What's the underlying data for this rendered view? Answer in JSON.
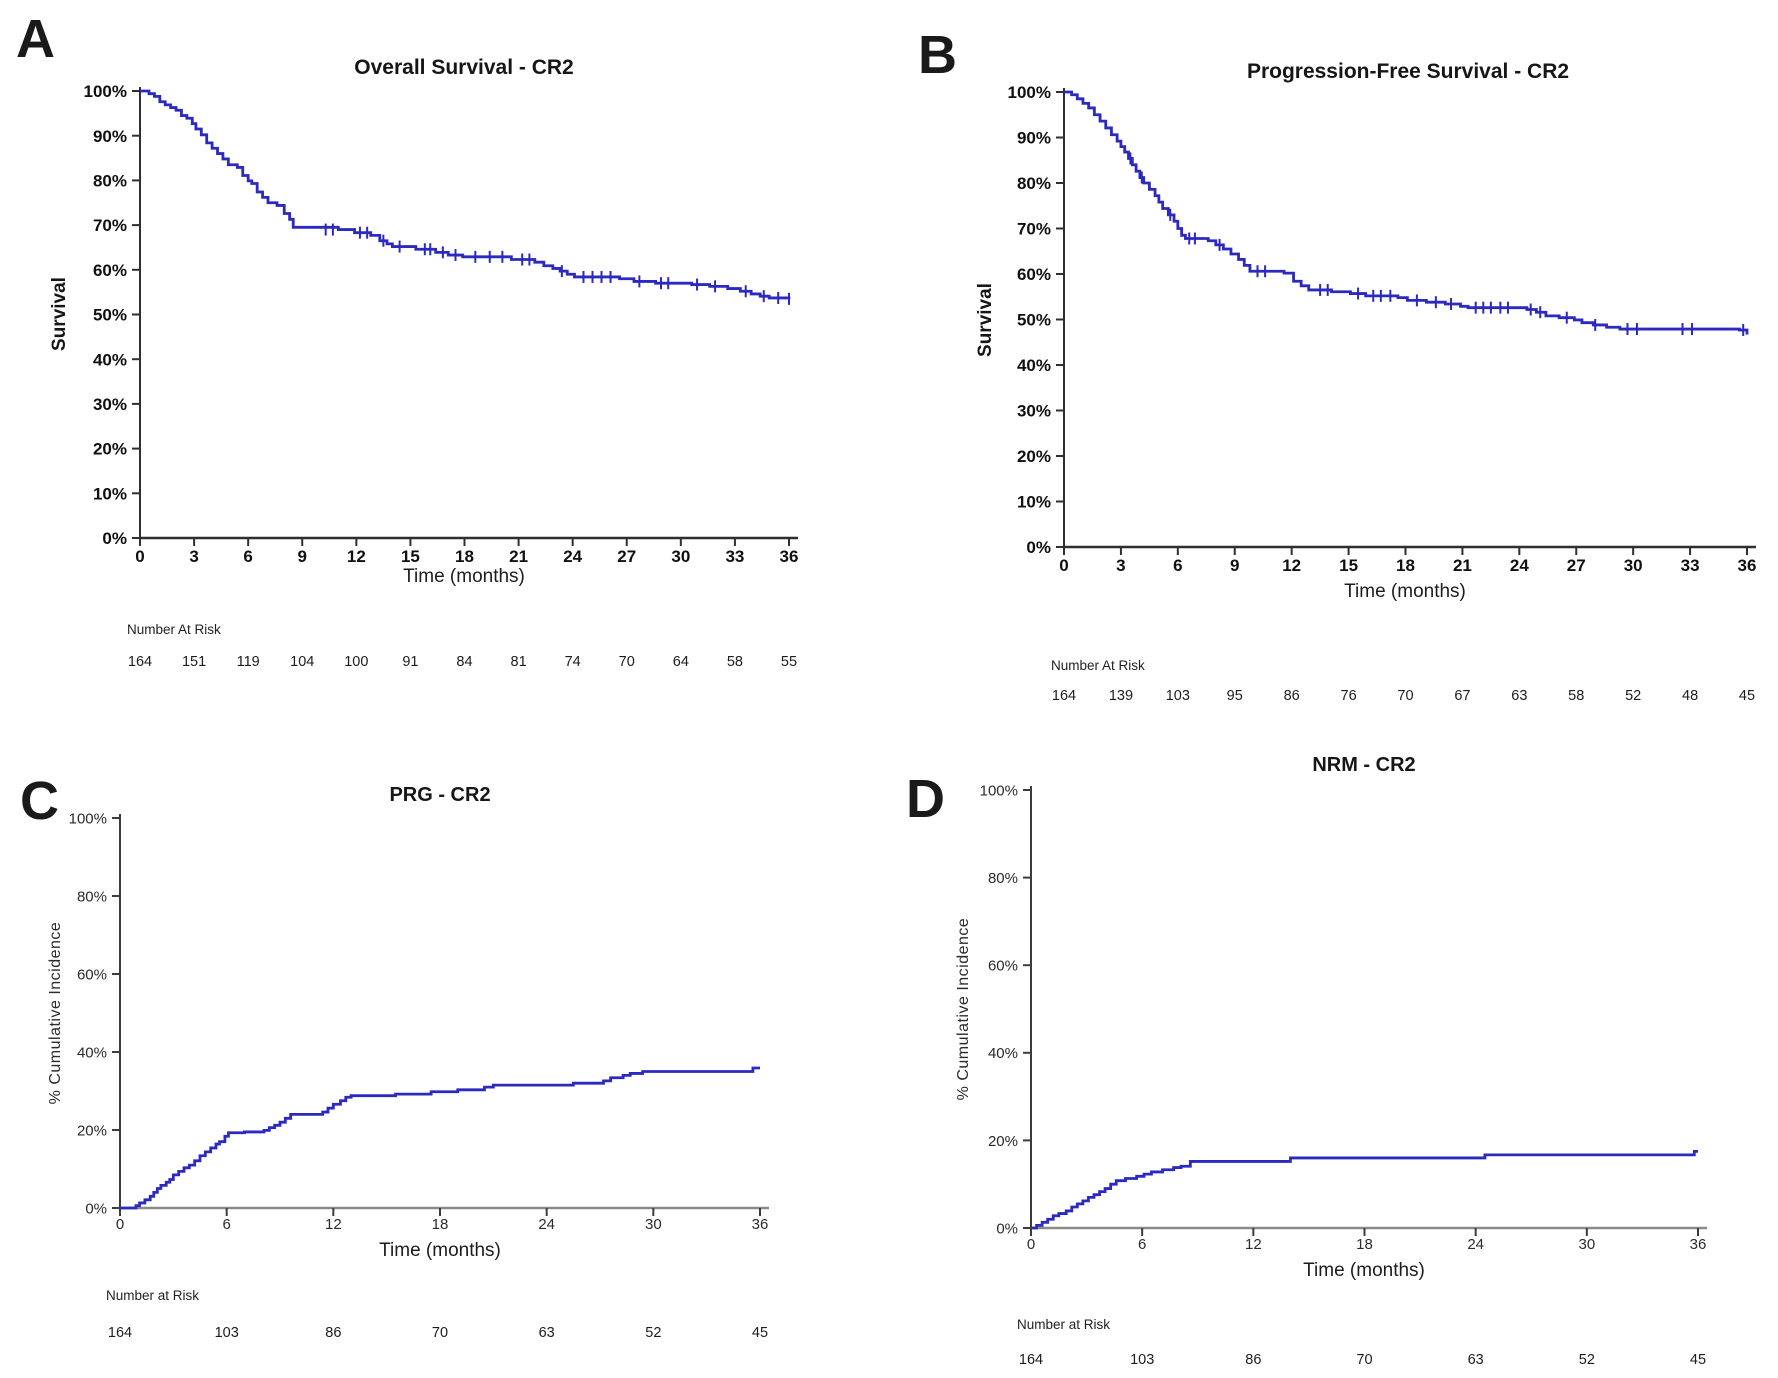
{
  "figure": {
    "background": "#ffffff",
    "curve_color": "#2b29bf",
    "panel_count": 4
  },
  "chart_data": [
    {
      "id": "A",
      "panel_label": "A",
      "type": "line",
      "title": "Overall Survival - CR2",
      "xlabel": "Time (months)",
      "ylabel": "Survival",
      "xlim": [
        0,
        36
      ],
      "ylim": [
        0,
        100
      ],
      "grid": false,
      "legend": "none",
      "x_ticks": [
        0,
        3,
        6,
        9,
        12,
        15,
        18,
        21,
        24,
        27,
        30,
        33,
        36
      ],
      "y_ticks": [
        0,
        10,
        20,
        30,
        40,
        50,
        60,
        70,
        80,
        90,
        100
      ],
      "y_tick_suffix": "%",
      "curve_color": "#2b29bf",
      "steps": [
        [
          0,
          100
        ],
        [
          0.5,
          99.4
        ],
        [
          0.8,
          98.8
        ],
        [
          1.1,
          97.6
        ],
        [
          1.4,
          96.9
        ],
        [
          1.7,
          96.3
        ],
        [
          2.0,
          95.7
        ],
        [
          2.3,
          94.5
        ],
        [
          2.6,
          93.9
        ],
        [
          2.9,
          92.7
        ],
        [
          3.1,
          91.5
        ],
        [
          3.4,
          90.2
        ],
        [
          3.7,
          88.4
        ],
        [
          4.0,
          87.2
        ],
        [
          4.3,
          86.0
        ],
        [
          4.6,
          84.8
        ],
        [
          4.9,
          83.5
        ],
        [
          5.4,
          82.9
        ],
        [
          5.7,
          81.1
        ],
        [
          6.0,
          79.9
        ],
        [
          6.2,
          79.3
        ],
        [
          6.5,
          77.4
        ],
        [
          6.8,
          76.2
        ],
        [
          7.1,
          75.0
        ],
        [
          7.6,
          74.4
        ],
        [
          8.0,
          72.6
        ],
        [
          8.3,
          71.3
        ],
        [
          8.5,
          69.5
        ],
        [
          11.0,
          69.0
        ],
        [
          11.9,
          68.3
        ],
        [
          12.8,
          67.7
        ],
        [
          13.3,
          66.5
        ],
        [
          13.7,
          65.8
        ],
        [
          14.0,
          65.2
        ],
        [
          15.3,
          64.6
        ],
        [
          16.4,
          63.9
        ],
        [
          17.1,
          63.3
        ],
        [
          17.9,
          62.9
        ],
        [
          20.6,
          62.3
        ],
        [
          21.9,
          61.7
        ],
        [
          22.4,
          60.9
        ],
        [
          22.9,
          60.3
        ],
        [
          23.3,
          59.7
        ],
        [
          23.7,
          59.0
        ],
        [
          24.1,
          58.4
        ],
        [
          26.6,
          58.0
        ],
        [
          27.4,
          57.4
        ],
        [
          28.6,
          57.0
        ],
        [
          30.6,
          56.7
        ],
        [
          31.6,
          56.3
        ],
        [
          32.6,
          55.8
        ],
        [
          33.3,
          55.2
        ],
        [
          33.9,
          54.6
        ],
        [
          34.4,
          54.1
        ],
        [
          34.9,
          53.7
        ],
        [
          36,
          53.5
        ]
      ],
      "censor_marks": [
        [
          10.3,
          69.0
        ],
        [
          10.7,
          69.0
        ],
        [
          12.2,
          68.3
        ],
        [
          12.6,
          68.3
        ],
        [
          13.5,
          66.5
        ],
        [
          14.4,
          65.2
        ],
        [
          15.8,
          64.6
        ],
        [
          16.1,
          64.6
        ],
        [
          16.8,
          63.9
        ],
        [
          17.5,
          63.3
        ],
        [
          18.6,
          62.9
        ],
        [
          19.4,
          62.9
        ],
        [
          20.1,
          62.9
        ],
        [
          21.2,
          62.3
        ],
        [
          21.6,
          62.3
        ],
        [
          23.4,
          59.7
        ],
        [
          24.6,
          58.4
        ],
        [
          25.1,
          58.4
        ],
        [
          25.6,
          58.4
        ],
        [
          26.1,
          58.4
        ],
        [
          27.7,
          57.4
        ],
        [
          28.9,
          57.0
        ],
        [
          29.3,
          57.0
        ],
        [
          30.9,
          56.7
        ],
        [
          31.9,
          56.3
        ],
        [
          33.6,
          55.2
        ],
        [
          34.6,
          54.1
        ],
        [
          35.4,
          53.7
        ],
        [
          36,
          53.5
        ]
      ],
      "number_at_risk": {
        "label": "Number At Risk",
        "times": [
          0,
          3,
          6,
          9,
          12,
          15,
          18,
          21,
          24,
          27,
          30,
          33,
          36
        ],
        "counts": [
          164,
          151,
          119,
          104,
          100,
          91,
          84,
          81,
          74,
          70,
          64,
          58,
          55
        ]
      }
    },
    {
      "id": "B",
      "panel_label": "B",
      "type": "line",
      "title": "Progression-Free Survival - CR2",
      "xlabel": "Time (months)",
      "ylabel": "Survival",
      "xlim": [
        0,
        36
      ],
      "ylim": [
        0,
        100
      ],
      "grid": false,
      "legend": "none",
      "x_ticks": [
        0,
        3,
        6,
        9,
        12,
        15,
        18,
        21,
        24,
        27,
        30,
        33,
        36
      ],
      "y_ticks": [
        0,
        10,
        20,
        30,
        40,
        50,
        60,
        70,
        80,
        90,
        100
      ],
      "y_tick_suffix": "%",
      "curve_color": "#2b29bf",
      "steps": [
        [
          0,
          100
        ],
        [
          0.4,
          99.4
        ],
        [
          0.7,
          98.5
        ],
        [
          1.0,
          97.5
        ],
        [
          1.3,
          96.5
        ],
        [
          1.6,
          95.0
        ],
        [
          1.9,
          93.6
        ],
        [
          2.2,
          92.1
        ],
        [
          2.5,
          90.6
        ],
        [
          2.8,
          89.2
        ],
        [
          3.0,
          88.0
        ],
        [
          3.2,
          86.8
        ],
        [
          3.4,
          85.4
        ],
        [
          3.6,
          84.0
        ],
        [
          3.8,
          82.6
        ],
        [
          4.0,
          81.2
        ],
        [
          4.2,
          80.0
        ],
        [
          4.5,
          78.6
        ],
        [
          4.8,
          77.2
        ],
        [
          5.0,
          75.8
        ],
        [
          5.2,
          74.4
        ],
        [
          5.5,
          73.0
        ],
        [
          5.8,
          71.6
        ],
        [
          6.0,
          70.0
        ],
        [
          6.2,
          68.5
        ],
        [
          6.4,
          67.8
        ],
        [
          7.6,
          67.3
        ],
        [
          8.0,
          66.4
        ],
        [
          8.4,
          65.5
        ],
        [
          8.8,
          64.4
        ],
        [
          9.2,
          63.2
        ],
        [
          9.5,
          61.9
        ],
        [
          9.8,
          60.6
        ],
        [
          11.6,
          60.2
        ],
        [
          12.1,
          58.4
        ],
        [
          12.5,
          57.4
        ],
        [
          12.9,
          56.5
        ],
        [
          14.1,
          56.1
        ],
        [
          15.1,
          55.7
        ],
        [
          15.9,
          55.2
        ],
        [
          17.6,
          54.8
        ],
        [
          18.1,
          54.2
        ],
        [
          19.1,
          53.8
        ],
        [
          20.1,
          53.4
        ],
        [
          20.9,
          52.9
        ],
        [
          21.3,
          52.6
        ],
        [
          24.4,
          52.2
        ],
        [
          24.9,
          51.6
        ],
        [
          25.4,
          50.8
        ],
        [
          26.1,
          50.4
        ],
        [
          26.9,
          49.9
        ],
        [
          27.3,
          49.3
        ],
        [
          27.9,
          48.8
        ],
        [
          28.6,
          48.3
        ],
        [
          29.3,
          47.9
        ],
        [
          35.6,
          47.7
        ],
        [
          36,
          46.7
        ]
      ],
      "censor_marks": [
        [
          3.5,
          85.4
        ],
        [
          4.1,
          81.2
        ],
        [
          5.6,
          73.0
        ],
        [
          6.6,
          67.8
        ],
        [
          6.9,
          67.8
        ],
        [
          8.2,
          66.4
        ],
        [
          10.2,
          60.6
        ],
        [
          10.6,
          60.6
        ],
        [
          13.5,
          56.5
        ],
        [
          13.9,
          56.5
        ],
        [
          15.5,
          55.7
        ],
        [
          16.3,
          55.2
        ],
        [
          16.7,
          55.2
        ],
        [
          17.2,
          55.2
        ],
        [
          18.6,
          54.2
        ],
        [
          19.6,
          53.8
        ],
        [
          20.4,
          53.4
        ],
        [
          21.7,
          52.6
        ],
        [
          22.1,
          52.6
        ],
        [
          22.5,
          52.6
        ],
        [
          23.0,
          52.6
        ],
        [
          23.4,
          52.6
        ],
        [
          24.6,
          52.2
        ],
        [
          25.1,
          51.6
        ],
        [
          26.5,
          50.4
        ],
        [
          28.0,
          48.8
        ],
        [
          29.7,
          47.9
        ],
        [
          30.2,
          47.9
        ],
        [
          32.6,
          47.9
        ],
        [
          33.1,
          47.9
        ],
        [
          35.8,
          47.7
        ]
      ],
      "number_at_risk": {
        "label": "Number At Risk",
        "times": [
          0,
          3,
          6,
          9,
          12,
          15,
          18,
          21,
          24,
          27,
          30,
          33,
          36
        ],
        "counts": [
          164,
          139,
          103,
          95,
          86,
          76,
          70,
          67,
          63,
          58,
          52,
          48,
          45
        ]
      }
    },
    {
      "id": "C",
      "panel_label": "C",
      "type": "line",
      "title": "PRG - CR2",
      "xlabel": "Time (months)",
      "ylabel": "% Cumulative Incidence",
      "xlim": [
        0,
        36
      ],
      "ylim": [
        0,
        100
      ],
      "grid": false,
      "legend": "none",
      "x_ticks": [
        0,
        6,
        12,
        18,
        24,
        30,
        36
      ],
      "y_ticks": [
        0,
        20,
        40,
        60,
        80,
        100
      ],
      "y_tick_suffix": "%",
      "curve_color": "#2b29bf",
      "steps": [
        [
          0,
          0
        ],
        [
          0.9,
          0.6
        ],
        [
          1.1,
          1.3
        ],
        [
          1.4,
          2.1
        ],
        [
          1.7,
          3.0
        ],
        [
          1.9,
          4.0
        ],
        [
          2.1,
          5.0
        ],
        [
          2.3,
          5.8
        ],
        [
          2.6,
          6.6
        ],
        [
          2.8,
          7.3
        ],
        [
          3.0,
          8.5
        ],
        [
          3.3,
          9.4
        ],
        [
          3.6,
          10.3
        ],
        [
          3.9,
          11.0
        ],
        [
          4.2,
          12.1
        ],
        [
          4.5,
          13.4
        ],
        [
          4.8,
          14.4
        ],
        [
          5.1,
          15.4
        ],
        [
          5.4,
          16.4
        ],
        [
          5.6,
          17.0
        ],
        [
          5.9,
          18.4
        ],
        [
          6.1,
          19.3
        ],
        [
          7.0,
          19.5
        ],
        [
          8.1,
          19.9
        ],
        [
          8.4,
          20.6
        ],
        [
          8.7,
          21.2
        ],
        [
          9.0,
          22.0
        ],
        [
          9.3,
          23.0
        ],
        [
          9.6,
          24.0
        ],
        [
          11.4,
          24.6
        ],
        [
          11.7,
          25.6
        ],
        [
          12.0,
          26.6
        ],
        [
          12.4,
          27.5
        ],
        [
          12.7,
          28.4
        ],
        [
          13.0,
          28.8
        ],
        [
          15.5,
          29.2
        ],
        [
          17.5,
          29.8
        ],
        [
          19.0,
          30.3
        ],
        [
          20.5,
          31.0
        ],
        [
          21.0,
          31.5
        ],
        [
          25.5,
          32.0
        ],
        [
          27.2,
          32.6
        ],
        [
          27.6,
          33.4
        ],
        [
          28.3,
          34.0
        ],
        [
          28.7,
          34.5
        ],
        [
          29.4,
          35.0
        ],
        [
          35.6,
          35.9
        ],
        [
          36,
          35.9
        ]
      ],
      "censor_marks": [],
      "number_at_risk": {
        "label": "Number at Risk",
        "times": [
          0,
          6,
          12,
          18,
          24,
          30,
          36
        ],
        "counts": [
          164,
          103,
          86,
          70,
          63,
          52,
          45
        ]
      }
    },
    {
      "id": "D",
      "panel_label": "D",
      "type": "line",
      "title": "NRM - CR2",
      "xlabel": "Time (months)",
      "ylabel": "% Cumulative Incidence",
      "xlim": [
        0,
        36
      ],
      "ylim": [
        0,
        100
      ],
      "grid": false,
      "legend": "none",
      "x_ticks": [
        0,
        6,
        12,
        18,
        24,
        30,
        36
      ],
      "y_ticks": [
        0,
        20,
        40,
        60,
        80,
        100
      ],
      "y_tick_suffix": "%",
      "curve_color": "#2b29bf",
      "steps": [
        [
          0,
          0
        ],
        [
          0.3,
          0.6
        ],
        [
          0.6,
          1.3
        ],
        [
          0.9,
          2.0
        ],
        [
          1.2,
          2.8
        ],
        [
          1.5,
          3.3
        ],
        [
          1.9,
          3.9
        ],
        [
          2.2,
          4.8
        ],
        [
          2.5,
          5.5
        ],
        [
          2.8,
          6.2
        ],
        [
          3.1,
          7.0
        ],
        [
          3.4,
          7.6
        ],
        [
          3.7,
          8.3
        ],
        [
          4.0,
          9.0
        ],
        [
          4.3,
          10.0
        ],
        [
          4.6,
          10.8
        ],
        [
          5.1,
          11.3
        ],
        [
          5.7,
          11.8
        ],
        [
          6.1,
          12.3
        ],
        [
          6.5,
          12.8
        ],
        [
          7.1,
          13.3
        ],
        [
          7.7,
          13.8
        ],
        [
          8.1,
          14.1
        ],
        [
          8.6,
          15.2
        ],
        [
          14.0,
          16.0
        ],
        [
          24.5,
          16.7
        ],
        [
          35.8,
          17.5
        ],
        [
          36,
          17.5
        ]
      ],
      "censor_marks": [],
      "number_at_risk": {
        "label": "Number at Risk",
        "times": [
          0,
          6,
          12,
          18,
          24,
          30,
          36
        ],
        "counts": [
          164,
          103,
          86,
          70,
          63,
          52,
          45
        ]
      }
    }
  ]
}
